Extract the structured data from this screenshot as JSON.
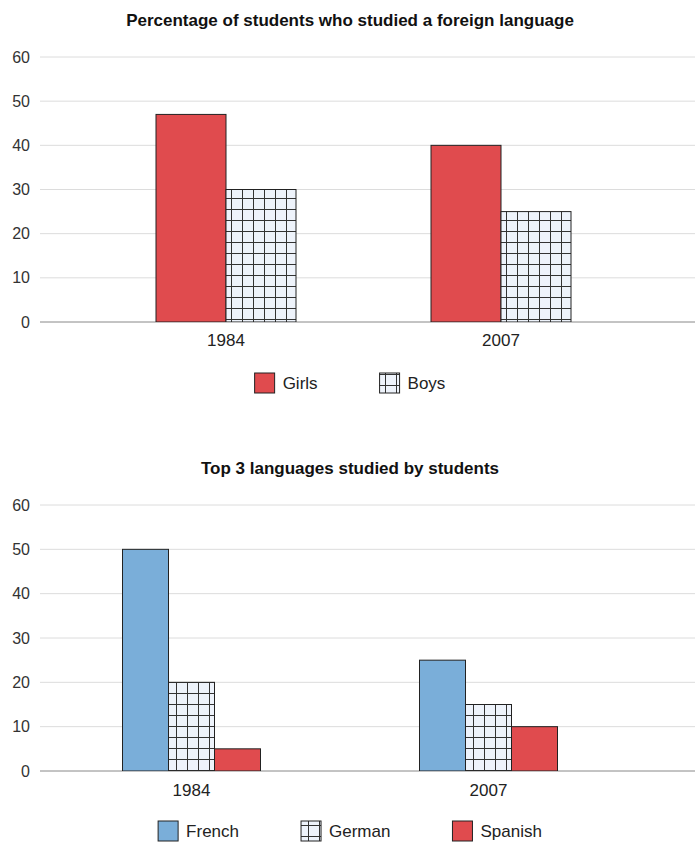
{
  "chart_data": [
    {
      "type": "bar",
      "title": "Percentage of students who studied a foreign language",
      "categories": [
        "1984",
        "2007"
      ],
      "series": [
        {
          "name": "Girls",
          "color": "#e04b4e",
          "values": [
            47,
            40
          ]
        },
        {
          "name": "Boys",
          "color": "#eef3fb",
          "values": [
            30,
            25
          ]
        }
      ],
      "ylim": [
        0,
        60
      ],
      "yticks": [
        0,
        10,
        20,
        30,
        40,
        50,
        60
      ],
      "grid": true,
      "legend": "bottom"
    },
    {
      "type": "bar",
      "title": "Top 3 languages studied by students",
      "categories": [
        "1984",
        "2007"
      ],
      "series": [
        {
          "name": "French",
          "color": "#7aaed9",
          "values": [
            50,
            25
          ]
        },
        {
          "name": "German",
          "color": "#eef3fb",
          "values": [
            20,
            15
          ]
        },
        {
          "name": "Spanish",
          "color": "#e04b4e",
          "values": [
            5,
            10
          ]
        }
      ],
      "ylim": [
        0,
        60
      ],
      "yticks": [
        0,
        10,
        20,
        30,
        40,
        50,
        60
      ],
      "grid": true,
      "legend": "bottom"
    }
  ]
}
